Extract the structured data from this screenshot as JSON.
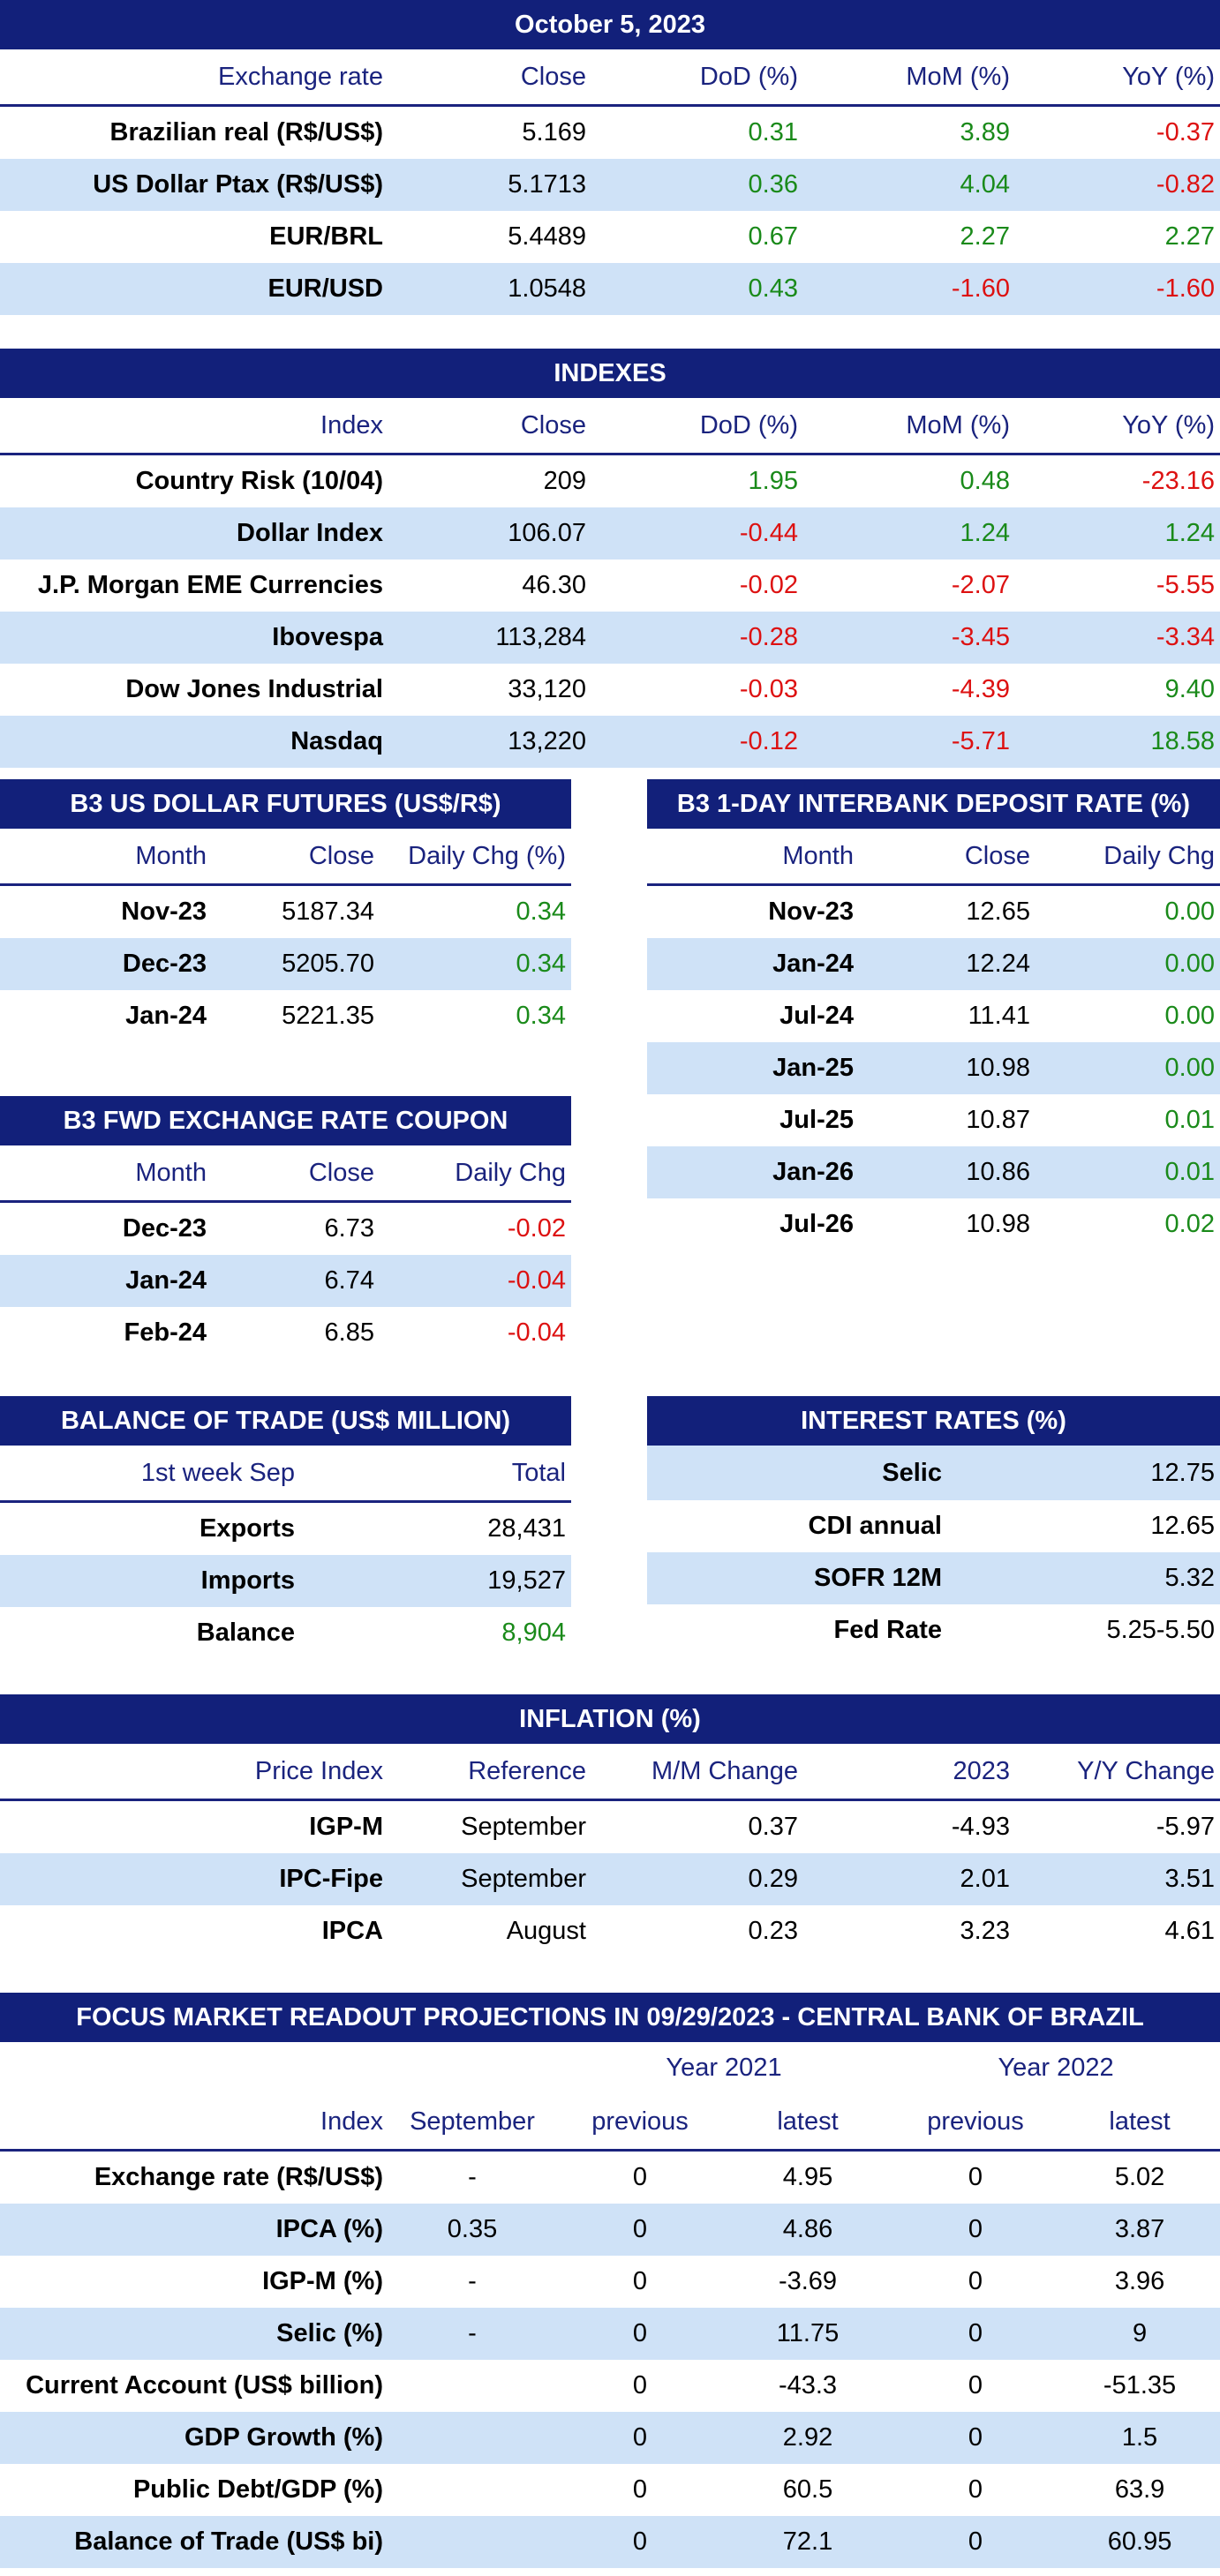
{
  "exchange": {
    "title": "October 5, 2023",
    "headers": [
      "Exchange rate",
      "Close",
      "DoD (%)",
      "MoM (%)",
      "YoY (%)"
    ],
    "rows": [
      [
        "Brazilian real (R$/US$)",
        "5.169",
        "0.31",
        "3.89",
        "-0.37"
      ],
      [
        "US Dollar Ptax (R$/US$)",
        "5.1713",
        "0.36",
        "4.04",
        "-0.82"
      ],
      [
        "EUR/BRL",
        "5.4489",
        "0.67",
        "2.27",
        "2.27"
      ],
      [
        "EUR/USD",
        "1.0548",
        "0.43",
        "-1.60",
        "-1.60"
      ]
    ]
  },
  "indexes": {
    "title": "INDEXES",
    "headers": [
      "Index",
      "Close",
      "DoD (%)",
      "MoM (%)",
      "YoY (%)"
    ],
    "rows": [
      [
        "Country Risk (10/04)",
        "209",
        "1.95",
        "0.48",
        "-23.16"
      ],
      [
        "Dollar Index",
        "106.07",
        "-0.44",
        "1.24",
        "1.24"
      ],
      [
        "J.P. Morgan EME Currencies",
        "46.30",
        "-0.02",
        "-2.07",
        "-5.55"
      ],
      [
        "Ibovespa",
        "113,284",
        "-0.28",
        "-3.45",
        "-3.34"
      ],
      [
        "Dow Jones Industrial",
        "33,120",
        "-0.03",
        "-4.39",
        "9.40"
      ],
      [
        "Nasdaq",
        "13,220",
        "-0.12",
        "-5.71",
        "18.58"
      ]
    ]
  },
  "dollar_futures": {
    "title": "B3 US DOLLAR FUTURES (US$/R$)",
    "headers": [
      "Month",
      "Close",
      "Daily Chg (%)"
    ],
    "rows": [
      [
        "Nov-23",
        "5187.34",
        "0.34"
      ],
      [
        "Dec-23",
        "5205.70",
        "0.34"
      ],
      [
        "Jan-24",
        "5221.35",
        "0.34"
      ]
    ]
  },
  "interbank": {
    "title": "B3 1-DAY INTERBANK DEPOSIT RATE (%)",
    "headers": [
      "Month",
      "Close",
      "Daily Chg"
    ],
    "rows": [
      [
        "Nov-23",
        "12.65",
        "0.00"
      ],
      [
        "Jan-24",
        "12.24",
        "0.00"
      ],
      [
        "Jul-24",
        "11.41",
        "0.00"
      ],
      [
        "Jan-25",
        "10.98",
        "0.00"
      ],
      [
        "Jul-25",
        "10.87",
        "0.01"
      ],
      [
        "Jan-26",
        "10.86",
        "0.01"
      ],
      [
        "Jul-26",
        "10.98",
        "0.02"
      ]
    ]
  },
  "fwd_coupon": {
    "title": "B3 FWD EXCHANGE RATE COUPON",
    "headers": [
      "Month",
      "Close",
      "Daily Chg"
    ],
    "rows": [
      [
        "Dec-23",
        "6.73",
        "-0.02"
      ],
      [
        "Jan-24",
        "6.74",
        "-0.04"
      ],
      [
        "Feb-24",
        "6.85",
        "-0.04"
      ]
    ]
  },
  "trade": {
    "title": "BALANCE OF TRADE (US$ MILLION)",
    "headers": [
      "1st week Sep",
      "Total"
    ],
    "rows": [
      [
        "Exports",
        "28,431"
      ],
      [
        "Imports",
        "19,527"
      ],
      [
        "Balance",
        "8,904"
      ]
    ]
  },
  "interest": {
    "title": "INTEREST RATES (%)",
    "rows": [
      [
        "Selic",
        "12.75"
      ],
      [
        "CDI annual",
        "12.65"
      ],
      [
        "SOFR 12M",
        "5.32"
      ],
      [
        "Fed Rate",
        "5.25-5.50"
      ]
    ]
  },
  "inflation": {
    "title": "INFLATION (%)",
    "headers": [
      "Price Index",
      "Reference",
      "M/M Change",
      "2023",
      "Y/Y Change"
    ],
    "rows": [
      [
        "IGP-M",
        "September",
        "0.37",
        "-4.93",
        "-5.97"
      ],
      [
        "IPC-Fipe",
        "September",
        "0.29",
        "2.01",
        "3.51"
      ],
      [
        "IPCA",
        "August",
        "0.23",
        "3.23",
        "4.61"
      ]
    ]
  },
  "focus": {
    "title": "FOCUS MARKET READOUT PROJECTIONS IN 09/29/2023 - CENTRAL BANK OF BRAZIL",
    "group_headers": [
      "Year 2021",
      "Year 2022"
    ],
    "headers": [
      "Index",
      "September",
      "previous",
      "latest",
      "previous",
      "latest"
    ],
    "rows": [
      [
        "Exchange rate (R$/US$)",
        "-",
        "0",
        "4.95",
        "0",
        "5.02"
      ],
      [
        "IPCA (%)",
        "0.35",
        "0",
        "4.86",
        "0",
        "3.87"
      ],
      [
        "IGP-M (%)",
        "-",
        "0",
        "-3.69",
        "0",
        "3.96"
      ],
      [
        "Selic (%)",
        "-",
        "0",
        "11.75",
        "0",
        "9"
      ],
      [
        "Current Account (US$ billion)",
        "",
        "0",
        "-43.3",
        "0",
        "-51.35"
      ],
      [
        "GDP Growth (%)",
        "",
        "0",
        "2.92",
        "0",
        "1.5"
      ],
      [
        "Public Debt/GDP (%)",
        "",
        "0",
        "60.5",
        "0",
        "63.9"
      ],
      [
        "Balance of Trade (US$ bi)",
        "",
        "0",
        "72.1",
        "0",
        "60.95"
      ]
    ]
  },
  "colors": {
    "header_bg": "#12207a",
    "row_shade": "#cfe2f7",
    "positive": "#1a8a1a",
    "negative": "#dd1111"
  }
}
